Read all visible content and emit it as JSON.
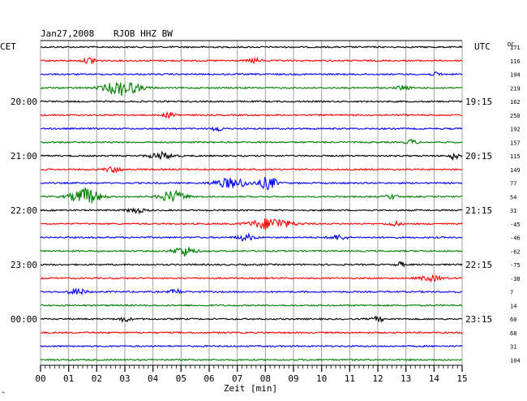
{
  "header": {
    "date": "Jan27,2008",
    "station": "RJOB HHZ BW",
    "left_tz": "CET",
    "right_tz": "UTC",
    "dc_label": "DC"
  },
  "xaxis": {
    "label": "Zeit [min]",
    "ticks": [
      "00",
      "01",
      "02",
      "03",
      "04",
      "05",
      "06",
      "07",
      "08",
      "09",
      "10",
      "11",
      "12",
      "13",
      "14",
      "15"
    ]
  },
  "corner_mark": "^",
  "chart_data": {
    "type": "line",
    "title": "Jan27,2008 RJOB HHZ BW",
    "xlabel": "Zeit [min]",
    "xlim": [
      0,
      15
    ],
    "trace_minutes": 15,
    "grid": true,
    "colors": [
      "#000000",
      "#ff0000",
      "#0000ff",
      "#008000"
    ],
    "left_time_labels": [
      "20:00",
      "21:00",
      "22:00",
      "23:00",
      "00:00"
    ],
    "right_time_labels": [
      "19:15",
      "20:15",
      "21:15",
      "22:15",
      "23:15"
    ],
    "left_label_rows": [
      4,
      8,
      12,
      16,
      20
    ],
    "right_label_rows": [
      4,
      8,
      12,
      16,
      20
    ],
    "dc_offsets": [
      171,
      116,
      194,
      219,
      162,
      250,
      192,
      157,
      115,
      149,
      77,
      54,
      31,
      -45,
      -46,
      -62,
      -75,
      -38,
      7,
      14,
      60,
      68,
      31,
      104
    ],
    "events": [
      {
        "row": 1,
        "minute": 1.8,
        "amp": 4,
        "width": 0.25
      },
      {
        "row": 1,
        "minute": 7.6,
        "amp": 3,
        "width": 0.2
      },
      {
        "row": 2,
        "minute": 14.1,
        "amp": 2,
        "width": 0.2
      },
      {
        "row": 3,
        "minute": 2.9,
        "amp": 9,
        "width": 0.6
      },
      {
        "row": 3,
        "minute": 12.9,
        "amp": 3,
        "width": 0.2
      },
      {
        "row": 5,
        "minute": 4.6,
        "amp": 3,
        "width": 0.25
      },
      {
        "row": 6,
        "minute": 6.3,
        "amp": 3,
        "width": 0.2
      },
      {
        "row": 7,
        "minute": 13.2,
        "amp": 3,
        "width": 0.2
      },
      {
        "row": 8,
        "minute": 4.3,
        "amp": 4,
        "width": 0.4
      },
      {
        "row": 8,
        "minute": 14.7,
        "amp": 5,
        "width": 0.15
      },
      {
        "row": 9,
        "minute": 2.6,
        "amp": 3,
        "width": 0.3
      },
      {
        "row": 10,
        "minute": 6.8,
        "amp": 6,
        "width": 0.6
      },
      {
        "row": 10,
        "minute": 8.1,
        "amp": 8,
        "width": 0.3
      },
      {
        "row": 11,
        "minute": 1.6,
        "amp": 10,
        "width": 0.5
      },
      {
        "row": 11,
        "minute": 4.7,
        "amp": 7,
        "width": 0.45
      },
      {
        "row": 11,
        "minute": 12.5,
        "amp": 3,
        "width": 0.2
      },
      {
        "row": 12,
        "minute": 3.4,
        "amp": 3,
        "width": 0.3
      },
      {
        "row": 13,
        "minute": 8.2,
        "amp": 7,
        "width": 0.7
      },
      {
        "row": 13,
        "minute": 12.6,
        "amp": 3,
        "width": 0.2
      },
      {
        "row": 14,
        "minute": 7.3,
        "amp": 4,
        "width": 0.3
      },
      {
        "row": 14,
        "minute": 10.6,
        "amp": 3,
        "width": 0.3
      },
      {
        "row": 15,
        "minute": 5.1,
        "amp": 6,
        "width": 0.35
      },
      {
        "row": 16,
        "minute": 12.8,
        "amp": 3,
        "width": 0.15
      },
      {
        "row": 17,
        "minute": 13.9,
        "amp": 3,
        "width": 0.4
      },
      {
        "row": 18,
        "minute": 1.3,
        "amp": 4,
        "width": 0.3
      },
      {
        "row": 18,
        "minute": 4.8,
        "amp": 3,
        "width": 0.2
      },
      {
        "row": 20,
        "minute": 3.0,
        "amp": 3,
        "width": 0.2
      },
      {
        "row": 20,
        "minute": 12.0,
        "amp": 3,
        "width": 0.2
      }
    ]
  }
}
